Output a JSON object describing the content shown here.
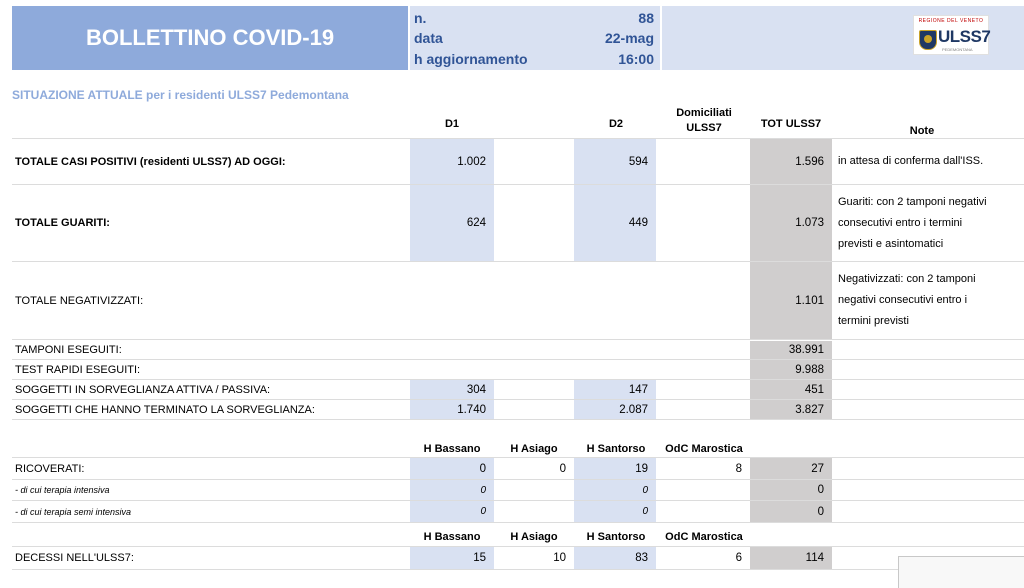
{
  "header": {
    "title": "BOLLETTINO COVID-19",
    "n_label": "n.",
    "n_value": "88",
    "data_label": "data",
    "data_value": "22-mag",
    "agg_label": "h aggiornamento",
    "agg_value": "16:00",
    "logo_top": "REGIONE DEL VENETO",
    "logo_text": "ULSS7",
    "logo_sub": "PEDEMONTANA"
  },
  "subtitle": "SITUAZIONE ATTUALE per i residenti ULSS7 Pedemontana",
  "columns": {
    "d1": "D1",
    "d2": "D2",
    "domiciliati": "Domiciliati ULSS7",
    "tot": "TOT ULSS7",
    "note": "Note"
  },
  "rows": {
    "positivi": {
      "label": "TOTALE CASI POSITIVI (residenti ULSS7) AD OGGI:",
      "d1": "1.002",
      "d2": "594",
      "tot": "1.596",
      "note": [
        "in attesa di conferma dall'ISS."
      ]
    },
    "guariti": {
      "label": "TOTALE GUARITI:",
      "d1": "624",
      "d2": "449",
      "tot": "1.073",
      "note": [
        "Guariti: con 2 tamponi negativi",
        "consecutivi entro i termini",
        "previsti e asintomatici"
      ]
    },
    "negativizzati": {
      "label": "TOTALE NEGATIVIZZATI:",
      "tot": "1.101",
      "note": [
        "Negativizzati: con 2 tamponi",
        "negativi consecutivi entro i",
        "termini previsti"
      ]
    },
    "tamponi": {
      "label": "TAMPONI ESEGUITI:",
      "tot": "38.991"
    },
    "rapidi": {
      "label": "TEST RAPIDI ESEGUITI:",
      "tot": "9.988"
    },
    "sorveglianza": {
      "label": "SOGGETTI IN SORVEGLIANZA ATTIVA / PASSIVA:",
      "d1": "304",
      "d2": "147",
      "tot": "451"
    },
    "terminato": {
      "label": "SOGGETTI CHE HANNO TERMINATO LA SORVEGLIANZA:",
      "d1": "1.740",
      "d2": "2.087",
      "tot": "3.827"
    }
  },
  "hosp_cols": {
    "bassano": "H Bassano",
    "asiago": "H Asiago",
    "santorso": "H Santorso",
    "marostica": "OdC Marostica"
  },
  "ricoverati": {
    "label": "RICOVERATI:",
    "bassano": "0",
    "asiago": "0",
    "santorso": "19",
    "marostica": "8",
    "tot": "27"
  },
  "ti": {
    "label": "- di cui terapia intensiva",
    "bassano": "0",
    "santorso": "0",
    "tot": "0"
  },
  "tsi": {
    "label": "- di cui terapia semi intensiva",
    "bassano": "0",
    "santorso": "0",
    "tot": "0"
  },
  "decessi": {
    "label": "DECESSI NELL'ULSS7:",
    "bassano": "15",
    "asiago": "10",
    "santorso": "83",
    "marostica": "6",
    "tot": "114"
  }
}
